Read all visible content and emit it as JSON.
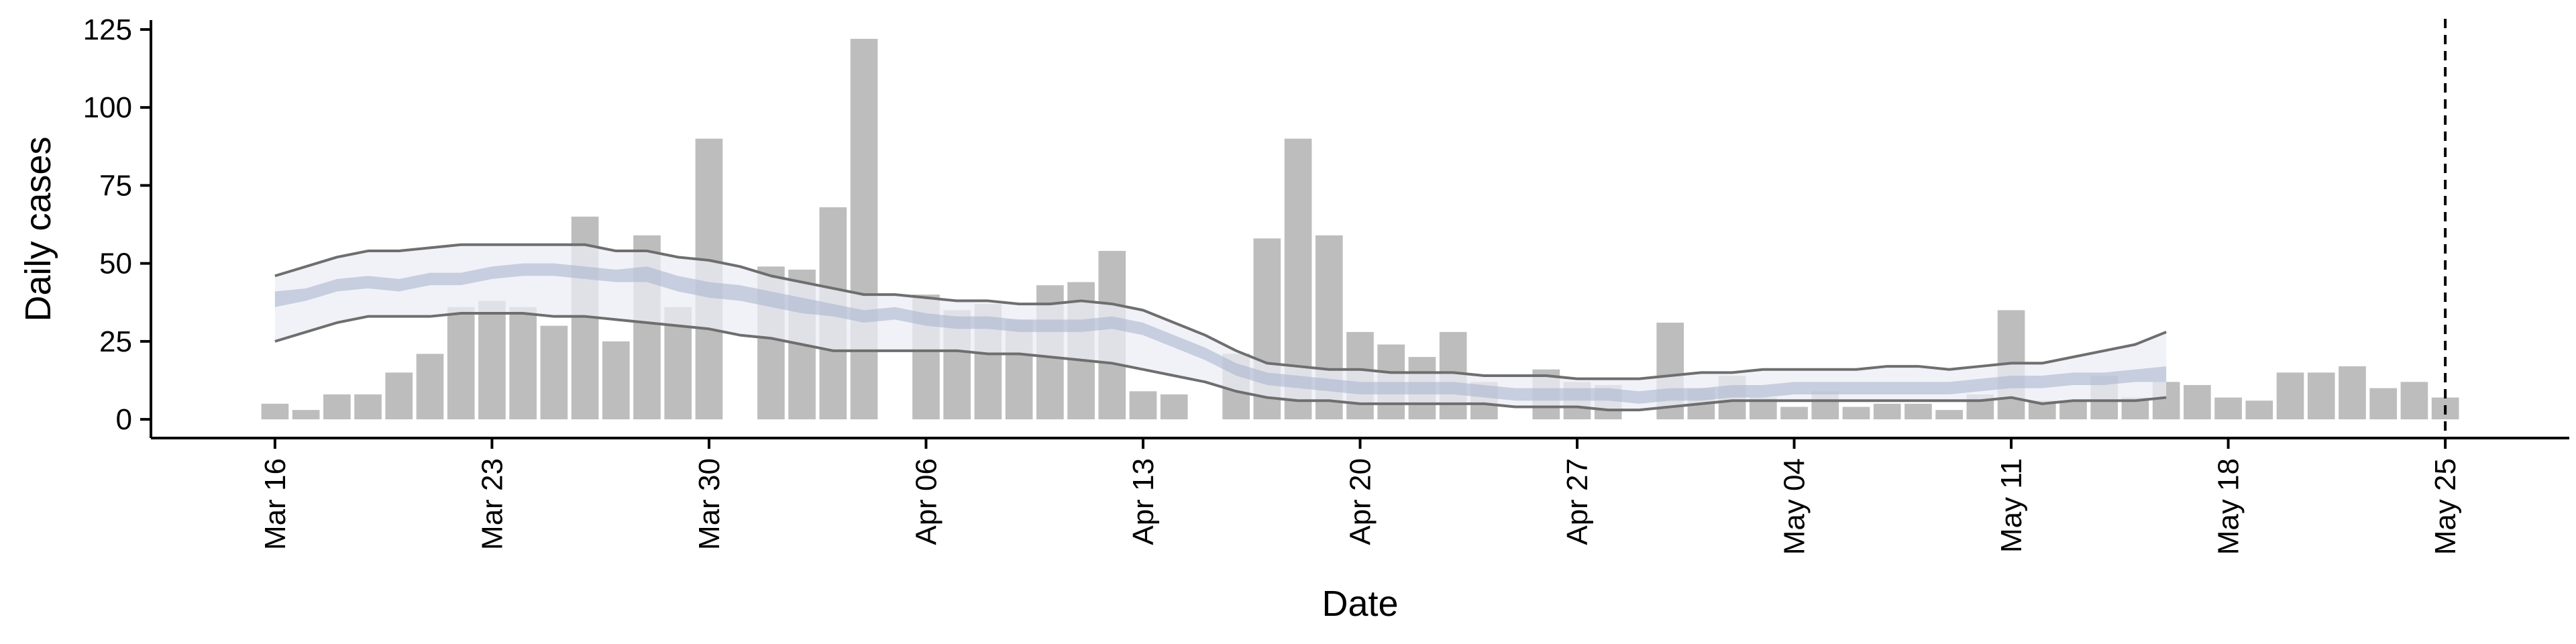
{
  "chart_data": {
    "type": "bar",
    "xlabel": "Date",
    "ylabel": "Daily cases",
    "ylim": [
      -6,
      128
    ],
    "yticks": [
      0,
      25,
      50,
      75,
      100,
      125
    ],
    "xlim": [
      -4,
      74
    ],
    "xticks": [
      {
        "day": 0,
        "label": "Mar 16"
      },
      {
        "day": 7,
        "label": "Mar 23"
      },
      {
        "day": 14,
        "label": "Mar 30"
      },
      {
        "day": 21,
        "label": "Apr 06"
      },
      {
        "day": 28,
        "label": "Apr 13"
      },
      {
        "day": 35,
        "label": "Apr 20"
      },
      {
        "day": 42,
        "label": "Apr 27"
      },
      {
        "day": 49,
        "label": "May 04"
      },
      {
        "day": 56,
        "label": "May 11"
      },
      {
        "day": 63,
        "label": "May 18"
      },
      {
        "day": 70,
        "label": "May 25"
      }
    ],
    "vline_day": 70,
    "grid": false,
    "colors": {
      "bars": "#bdbdbd",
      "outer_band": "#eceef5",
      "inner_band": "#aab5cf",
      "bounds_line": "#6e6e6e",
      "axis": "#000000"
    },
    "daily_cases": [
      5,
      3,
      8,
      8,
      15,
      21,
      36,
      38,
      36,
      30,
      65,
      25,
      59,
      36,
      90,
      0,
      49,
      48,
      68,
      122,
      0,
      40,
      35,
      37,
      32,
      43,
      44,
      54,
      9,
      8,
      0,
      21,
      58,
      90,
      59,
      28,
      24,
      20,
      28,
      12,
      0,
      16,
      12,
      11,
      0,
      31,
      10,
      14,
      7,
      4,
      9,
      4,
      5,
      5,
      3,
      8,
      35,
      6,
      6,
      14,
      7,
      12,
      11,
      7,
      6,
      15,
      15,
      17,
      10,
      12,
      7
    ],
    "estimate_days": [
      0,
      1,
      2,
      3,
      4,
      5,
      6,
      7,
      8,
      9,
      10,
      11,
      12,
      13,
      14,
      15,
      16,
      17,
      18,
      19,
      20,
      21,
      22,
      23,
      24,
      25,
      26,
      27,
      28,
      29,
      30,
      31,
      32,
      33,
      34,
      35,
      36,
      37,
      38,
      39,
      40,
      41,
      42,
      43,
      44,
      45,
      46,
      47,
      48,
      49,
      50,
      51,
      52,
      53,
      54,
      55,
      56,
      57,
      58,
      59,
      60,
      61
    ],
    "outer_upper": [
      46,
      49,
      52,
      54,
      54,
      55,
      56,
      56,
      56,
      56,
      56,
      54,
      54,
      52,
      51,
      49,
      46,
      44,
      42,
      40,
      40,
      39,
      38,
      38,
      37,
      37,
      38,
      37,
      35,
      31,
      27,
      22,
      18,
      17,
      16,
      16,
      15,
      15,
      15,
      14,
      14,
      14,
      13,
      13,
      13,
      14,
      15,
      15,
      16,
      16,
      16,
      16,
      17,
      17,
      16,
      17,
      18,
      18,
      20,
      22,
      24,
      28
    ],
    "inner_upper": [
      41,
      42,
      45,
      46,
      45,
      47,
      47,
      49,
      50,
      50,
      49,
      48,
      49,
      46,
      44,
      43,
      41,
      39,
      37,
      35,
      36,
      34,
      33,
      33,
      32,
      32,
      32,
      33,
      31,
      27,
      23,
      18,
      15,
      14,
      13,
      12,
      12,
      12,
      12,
      11,
      10,
      10,
      10,
      10,
      9,
      10,
      10,
      11,
      11,
      12,
      12,
      12,
      12,
      12,
      12,
      13,
      14,
      14,
      15,
      15,
      16,
      17
    ],
    "inner_lower": [
      36,
      38,
      41,
      42,
      41,
      43,
      43,
      45,
      46,
      46,
      45,
      44,
      44,
      41,
      39,
      38,
      36,
      34,
      33,
      31,
      32,
      30,
      29,
      29,
      28,
      28,
      28,
      29,
      27,
      23,
      19,
      14,
      11,
      10,
      9,
      8,
      8,
      8,
      8,
      7,
      6,
      6,
      6,
      6,
      5,
      6,
      6,
      7,
      7,
      8,
      8,
      8,
      8,
      8,
      8,
      9,
      10,
      10,
      11,
      11,
      12,
      12
    ],
    "outer_lower": [
      25,
      28,
      31,
      33,
      33,
      33,
      34,
      34,
      34,
      33,
      33,
      32,
      31,
      30,
      29,
      27,
      26,
      24,
      22,
      22,
      22,
      22,
      22,
      21,
      21,
      20,
      19,
      18,
      16,
      14,
      12,
      9,
      7,
      6,
      6,
      5,
      5,
      5,
      5,
      5,
      4,
      4,
      4,
      3,
      3,
      4,
      5,
      6,
      6,
      6,
      6,
      6,
      6,
      6,
      6,
      6,
      7,
      5,
      6,
      6,
      6,
      7
    ]
  }
}
